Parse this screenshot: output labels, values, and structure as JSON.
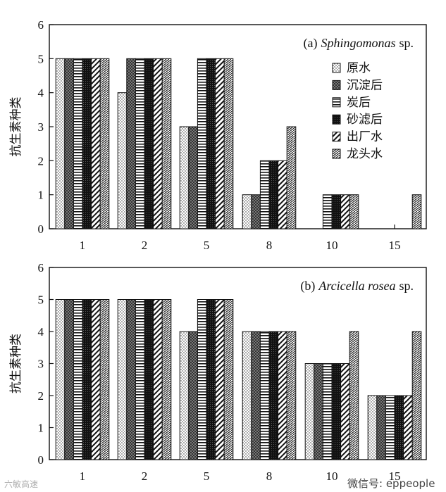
{
  "chart_data": [
    {
      "type": "bar",
      "panel_label": "(a)",
      "title_species": "Sphingomonas",
      "title_suffix": "sp.",
      "ylabel": "抗生素种类",
      "xlabel": "",
      "ylim": [
        0,
        6
      ],
      "yticks": [
        "0",
        "1",
        "2",
        "3",
        "4",
        "5",
        "6"
      ],
      "categories": [
        "1",
        "2",
        "5",
        "8",
        "10",
        "15"
      ],
      "legend_position": "top-right",
      "series": [
        {
          "name": "原水",
          "pattern": "dots",
          "values": [
            5,
            4,
            3,
            1,
            0,
            0
          ]
        },
        {
          "name": "沉淀后",
          "pattern": "crosshatch",
          "values": [
            5,
            5,
            3,
            1,
            0,
            0
          ]
        },
        {
          "name": "炭后",
          "pattern": "hlines",
          "values": [
            5,
            5,
            5,
            2,
            1,
            0
          ]
        },
        {
          "name": "砂滤后",
          "pattern": "dense",
          "values": [
            5,
            5,
            5,
            2,
            1,
            0
          ]
        },
        {
          "name": "出厂水",
          "pattern": "diag-back",
          "values": [
            5,
            5,
            5,
            2,
            1,
            0
          ]
        },
        {
          "name": "龙头水",
          "pattern": "herringbone",
          "values": [
            5,
            5,
            5,
            3,
            1,
            1
          ]
        }
      ]
    },
    {
      "type": "bar",
      "panel_label": "(b)",
      "title_species": "Arcicella rosea",
      "title_suffix": "sp.",
      "ylabel": "抗生素种类",
      "xlabel": "",
      "ylim": [
        0,
        6
      ],
      "yticks": [
        "0",
        "1",
        "2",
        "3",
        "4",
        "5",
        "6"
      ],
      "categories": [
        "1",
        "2",
        "5",
        "8",
        "10",
        "15"
      ],
      "series": [
        {
          "name": "原水",
          "pattern": "dots",
          "values": [
            5,
            5,
            4,
            4,
            3,
            2
          ]
        },
        {
          "name": "沉淀后",
          "pattern": "crosshatch",
          "values": [
            5,
            5,
            4,
            4,
            3,
            2
          ]
        },
        {
          "name": "炭后",
          "pattern": "hlines",
          "values": [
            5,
            5,
            5,
            4,
            3,
            2
          ]
        },
        {
          "name": "砂滤后",
          "pattern": "dense",
          "values": [
            5,
            5,
            5,
            4,
            3,
            2
          ]
        },
        {
          "name": "出厂水",
          "pattern": "diag-back",
          "values": [
            5,
            5,
            5,
            4,
            3,
            2
          ]
        },
        {
          "name": "龙头水",
          "pattern": "herringbone",
          "values": [
            5,
            5,
            5,
            4,
            4,
            4
          ]
        }
      ]
    }
  ],
  "watermark": {
    "left": "六敏高速",
    "right": "微信号: eppeople"
  }
}
